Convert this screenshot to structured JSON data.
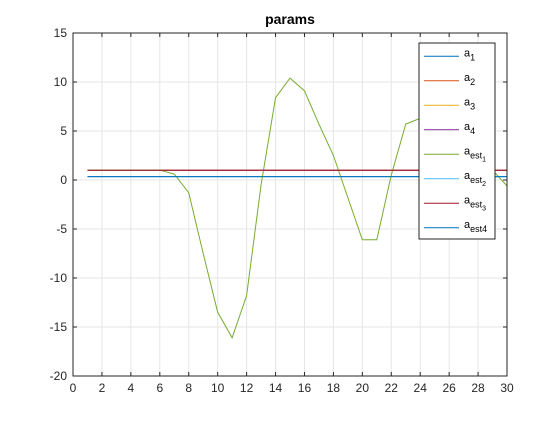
{
  "chart_data": {
    "type": "line",
    "title": "params",
    "xlabel": "",
    "ylabel": "",
    "xlim": [
      0,
      30
    ],
    "ylim": [
      -20,
      15
    ],
    "grid": true,
    "legend_position": "top-right",
    "x_ticks": [
      0,
      2,
      4,
      6,
      8,
      10,
      12,
      14,
      16,
      18,
      20,
      22,
      24,
      26,
      28,
      30
    ],
    "y_ticks": [
      15,
      10,
      5,
      0,
      -5,
      -10,
      -15,
      -20
    ],
    "series": [
      {
        "name": "a_1",
        "label_base": "a",
        "label_sub": "1",
        "color": "#0072BD",
        "x": [
          1,
          30
        ],
        "y": [
          0.35,
          0.35
        ]
      },
      {
        "name": "a_2",
        "label_base": "a",
        "label_sub": "2",
        "color": "#D95319",
        "x": [
          1,
          30
        ],
        "y": [
          1.0,
          1.0
        ]
      },
      {
        "name": "a_3",
        "label_base": "a",
        "label_sub": "3",
        "color": "#EDB120",
        "x": [
          1,
          30
        ],
        "y": [
          1.0,
          1.0
        ]
      },
      {
        "name": "a_4",
        "label_base": "a",
        "label_sub": "4",
        "color": "#7E2F8E",
        "x": [
          1,
          30
        ],
        "y": [
          1.0,
          1.0
        ]
      },
      {
        "name": "a_est_1",
        "label_base": "a",
        "label_sub": "est1",
        "label_subsub": "1",
        "label_sub_text": "est",
        "color": "#77AC30",
        "x": [
          1,
          2,
          3,
          4,
          5,
          6,
          7,
          8,
          9,
          10,
          11,
          12,
          13,
          14,
          15,
          16,
          17,
          18,
          19,
          20,
          21,
          22,
          23,
          24,
          25,
          26,
          27,
          28,
          29,
          30
        ],
        "y": [
          1.0,
          1.0,
          1.0,
          1.0,
          1.0,
          1.0,
          0.6,
          -1.3,
          -7.5,
          -13.5,
          -16.1,
          -11.8,
          -0.5,
          8.4,
          10.4,
          9.1,
          5.7,
          2.5,
          -1.8,
          -6.1,
          -6.1,
          0.5,
          5.7,
          6.3,
          6.0,
          5.8,
          5.2,
          4.5,
          1.0,
          -0.6
        ]
      },
      {
        "name": "a_est_2",
        "label_base": "a",
        "label_sub_text": "est",
        "label_subsub": "2",
        "color": "#4DBEEE",
        "x": [
          1,
          30
        ],
        "y": [
          0.35,
          0.35
        ]
      },
      {
        "name": "a_est_3",
        "label_base": "a",
        "label_sub_text": "est",
        "label_subsub": "3",
        "color": "#A2142F",
        "x": [
          1,
          30
        ],
        "y": [
          1.0,
          1.0
        ]
      },
      {
        "name": "a_est4",
        "label_base": "a",
        "label_sub": "est4",
        "color": "#0072BD",
        "x": [
          1,
          30
        ],
        "y": [
          0.35,
          0.35
        ]
      }
    ]
  }
}
